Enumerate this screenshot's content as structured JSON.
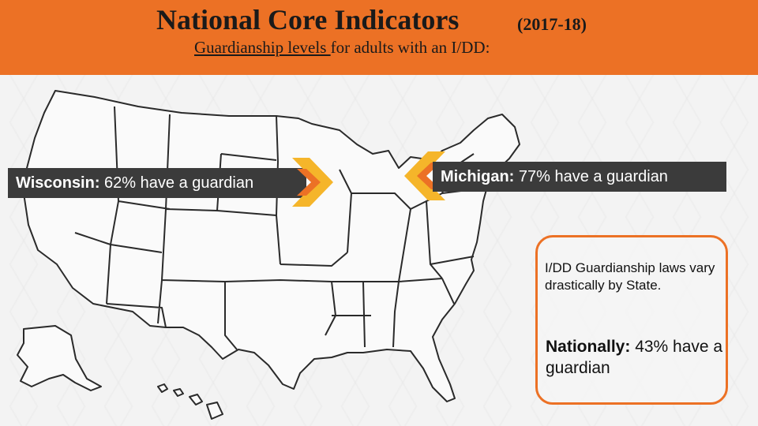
{
  "header": {
    "title": "National Core Indicators",
    "year": "(2017-18)",
    "subtitle_underlined": "Guardianship levels  ",
    "subtitle_rest": "for adults with an I/DD:"
  },
  "wisconsin": {
    "label": "Wisconsin:",
    "text": " 62% have a guardian"
  },
  "michigan": {
    "label": "Michigan:",
    "text": " 77% have a guardian"
  },
  "info": {
    "laws": "I/DD Guardianship laws vary drastically by State.",
    "national_label": "Nationally:",
    "national_text": " 43% have a guardian"
  },
  "colors": {
    "orange": "#ec7125",
    "yellow": "#f5b52a",
    "dark": "#3b3b3b"
  }
}
